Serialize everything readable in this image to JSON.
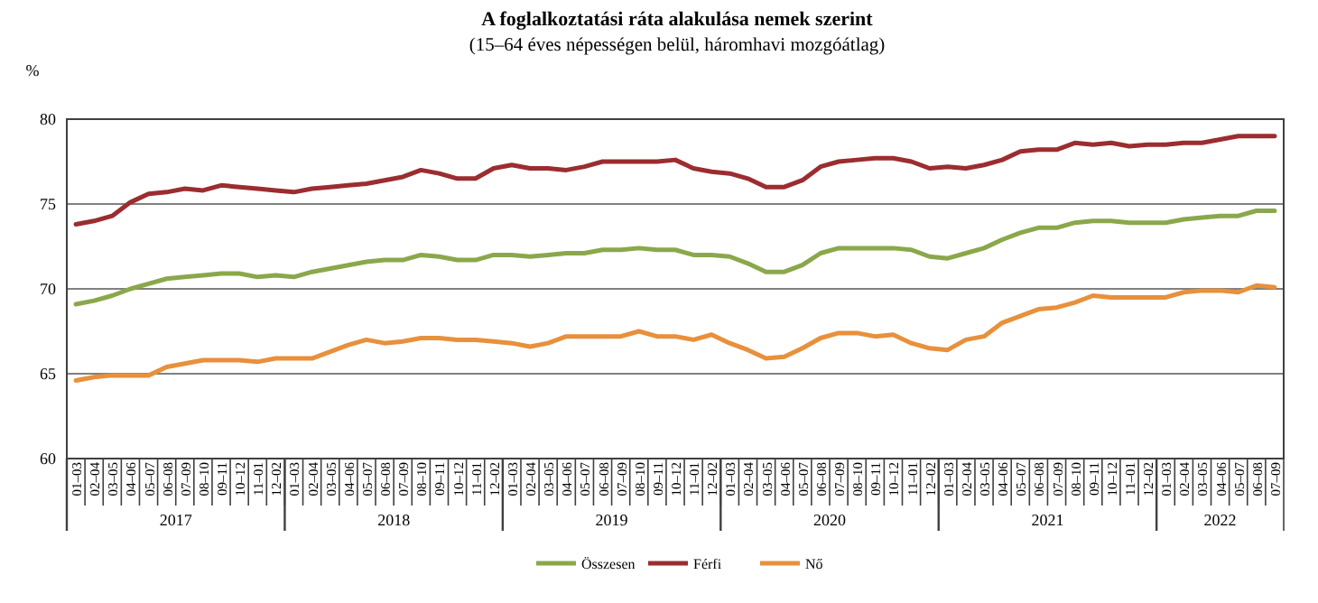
{
  "chart_data": {
    "type": "line",
    "title": "A foglalkoztatási ráta alakulása nemek szerint",
    "subtitle": "(15–64 éves népességen belül, háromhavi mozgóátlag)",
    "ylabel": "%",
    "categories": [
      "01–03",
      "02–04",
      "03–05",
      "04–06",
      "05–07",
      "06–08",
      "07–09",
      "08–10",
      "09–11",
      "10–12",
      "11–01",
      "12–02",
      "01–03",
      "02–04",
      "03–05",
      "04–06",
      "05–07",
      "06–08",
      "07–09",
      "08–10",
      "09–11",
      "10–12",
      "11–01",
      "12–02",
      "01–03",
      "02–04",
      "03–05",
      "04–06",
      "05–07",
      "06–08",
      "07–09",
      "08–10",
      "09–11",
      "10–12",
      "11–01",
      "12–02",
      "01–03",
      "02–04",
      "03–05",
      "04–06",
      "05–07",
      "06–08",
      "07–09",
      "08–10",
      "09–11",
      "10–12",
      "11–01",
      "12–02",
      "01–03",
      "02–04",
      "03–05",
      "04–06",
      "05–07",
      "06–08",
      "07–09",
      "08–10",
      "09–11",
      "10–12",
      "11–01",
      "12–02",
      "01–03",
      "02–04",
      "03–05",
      "04–06",
      "05–07",
      "06–08",
      "07–09"
    ],
    "annotations": [
      "2017",
      "2018",
      "2019",
      "2020",
      "2021",
      "2022"
    ],
    "series": [
      {
        "name": "Összesen",
        "color": "#8aa84b",
        "values": [
          69.1,
          69.3,
          69.6,
          70.0,
          70.3,
          70.6,
          70.7,
          70.8,
          70.9,
          70.9,
          70.7,
          70.8,
          70.7,
          71.0,
          71.2,
          71.4,
          71.6,
          71.7,
          71.7,
          72.0,
          71.9,
          71.7,
          71.7,
          72.0,
          72.0,
          71.9,
          72.0,
          72.1,
          72.1,
          72.3,
          72.3,
          72.4,
          72.3,
          72.3,
          72.0,
          72.0,
          71.9,
          71.5,
          71.0,
          71.0,
          71.4,
          72.1,
          72.4,
          72.4,
          72.4,
          72.4,
          72.3,
          71.9,
          71.8,
          72.1,
          72.4,
          72.9,
          73.3,
          73.6,
          73.6,
          73.9,
          74.0,
          74.0,
          73.9,
          73.9,
          73.9,
          74.1,
          74.2,
          74.3,
          74.3,
          74.6,
          74.6
        ]
      },
      {
        "name": "Férfi",
        "color": "#9b2d30",
        "values": [
          73.8,
          74.0,
          74.3,
          75.1,
          75.6,
          75.7,
          75.9,
          75.8,
          76.1,
          76.0,
          75.9,
          75.8,
          75.7,
          75.9,
          76.0,
          76.1,
          76.2,
          76.4,
          76.6,
          77.0,
          76.8,
          76.5,
          76.5,
          77.1,
          77.3,
          77.1,
          77.1,
          77.0,
          77.2,
          77.5,
          77.5,
          77.5,
          77.5,
          77.6,
          77.1,
          76.9,
          76.8,
          76.5,
          76.0,
          76.0,
          76.4,
          77.2,
          77.5,
          77.6,
          77.7,
          77.7,
          77.5,
          77.1,
          77.2,
          77.1,
          77.3,
          77.6,
          78.1,
          78.2,
          78.2,
          78.6,
          78.5,
          78.6,
          78.4,
          78.5,
          78.5,
          78.6,
          78.6,
          78.8,
          79.0,
          79.0,
          79.0
        ]
      },
      {
        "name": "Nő",
        "color": "#e8903c",
        "values": [
          64.6,
          64.8,
          64.9,
          64.9,
          64.9,
          65.4,
          65.6,
          65.8,
          65.8,
          65.8,
          65.7,
          65.9,
          65.9,
          65.9,
          66.3,
          66.7,
          67.0,
          66.8,
          66.9,
          67.1,
          67.1,
          67.0,
          67.0,
          66.9,
          66.8,
          66.6,
          66.8,
          67.2,
          67.2,
          67.2,
          67.2,
          67.5,
          67.2,
          67.2,
          67.0,
          67.3,
          66.8,
          66.4,
          65.9,
          66.0,
          66.5,
          67.1,
          67.4,
          67.4,
          67.2,
          67.3,
          66.8,
          66.5,
          66.4,
          67.0,
          67.2,
          68.0,
          68.4,
          68.8,
          68.9,
          69.2,
          69.6,
          69.5,
          69.5,
          69.5,
          69.5,
          69.8,
          69.9,
          69.9,
          69.8,
          70.2,
          70.1
        ]
      }
    ],
    "ylim": [
      60,
      80
    ],
    "yticks": [
      60,
      65,
      70,
      75,
      80
    ],
    "grid": "y",
    "legend": "bottom"
  }
}
